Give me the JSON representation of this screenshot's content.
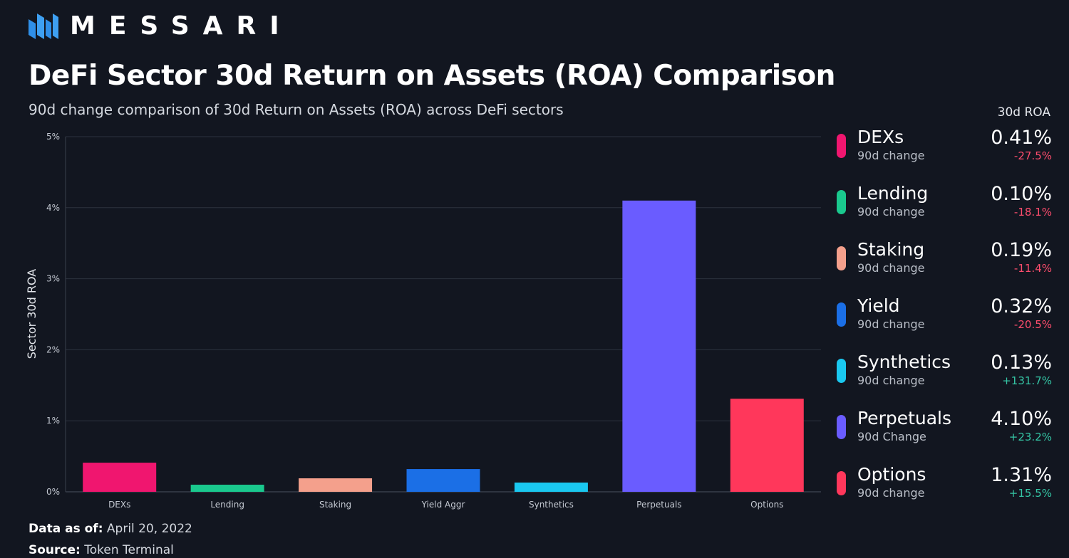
{
  "brand": {
    "name": "MESSARI"
  },
  "title": "DeFi Sector 30d Return on Assets (ROA) Comparison",
  "subtitle": "90d change comparison of 30d Return on Assets (ROA) across DeFi sectors",
  "legend_header": "30d ROA",
  "chart_data": {
    "type": "bar",
    "title": "DeFi Sector 30d Return on Assets (ROA) Comparison",
    "ylabel": "Sector 30d ROA",
    "xlabel": "",
    "categories": [
      "DEXs",
      "Lending",
      "Staking",
      "Yield Aggr",
      "Synthetics",
      "Perpetuals",
      "Options"
    ],
    "values": [
      0.41,
      0.1,
      0.19,
      0.32,
      0.13,
      4.1,
      1.31
    ],
    "unit": "%",
    "ylim": [
      0,
      5
    ],
    "yticks": [
      "0%",
      "1%",
      "2%",
      "3%",
      "4%",
      "5%"
    ],
    "colors": [
      "#f0166f",
      "#1ac98e",
      "#f4a08c",
      "#1b6fe6",
      "#1ac8f0",
      "#6a5cff",
      "#ff375b"
    ],
    "grid": true,
    "legend_position": "right"
  },
  "legend": [
    {
      "name": "DEXs",
      "sub": "90d change",
      "value": "0.41%",
      "change": "-27.5%",
      "trend": "neg",
      "color": "#f0166f"
    },
    {
      "name": "Lending",
      "sub": "90d change",
      "value": "0.10%",
      "change": "-18.1%",
      "trend": "neg",
      "color": "#1ac98e"
    },
    {
      "name": "Staking",
      "sub": "90d change",
      "value": "0.19%",
      "change": "-11.4%",
      "trend": "neg",
      "color": "#f4a08c"
    },
    {
      "name": "Yield",
      "sub": "90d change",
      "value": "0.32%",
      "change": "-20.5%",
      "trend": "neg",
      "color": "#1b6fe6"
    },
    {
      "name": "Synthetics",
      "sub": "90d change",
      "value": "0.13%",
      "change": "+131.7%",
      "trend": "pos",
      "color": "#1ac8f0"
    },
    {
      "name": "Perpetuals",
      "sub": "90d Change",
      "value": "4.10%",
      "change": "+23.2%",
      "trend": "pos",
      "color": "#6a5cff"
    },
    {
      "name": "Options",
      "sub": "90d change",
      "value": "1.31%",
      "change": "+15.5%",
      "trend": "pos",
      "color": "#ff375b"
    }
  ],
  "footer": {
    "date_label": "Data as of",
    "date_value": "April 20, 2022",
    "source_label": "Source",
    "source_value": "Token Terminal"
  }
}
